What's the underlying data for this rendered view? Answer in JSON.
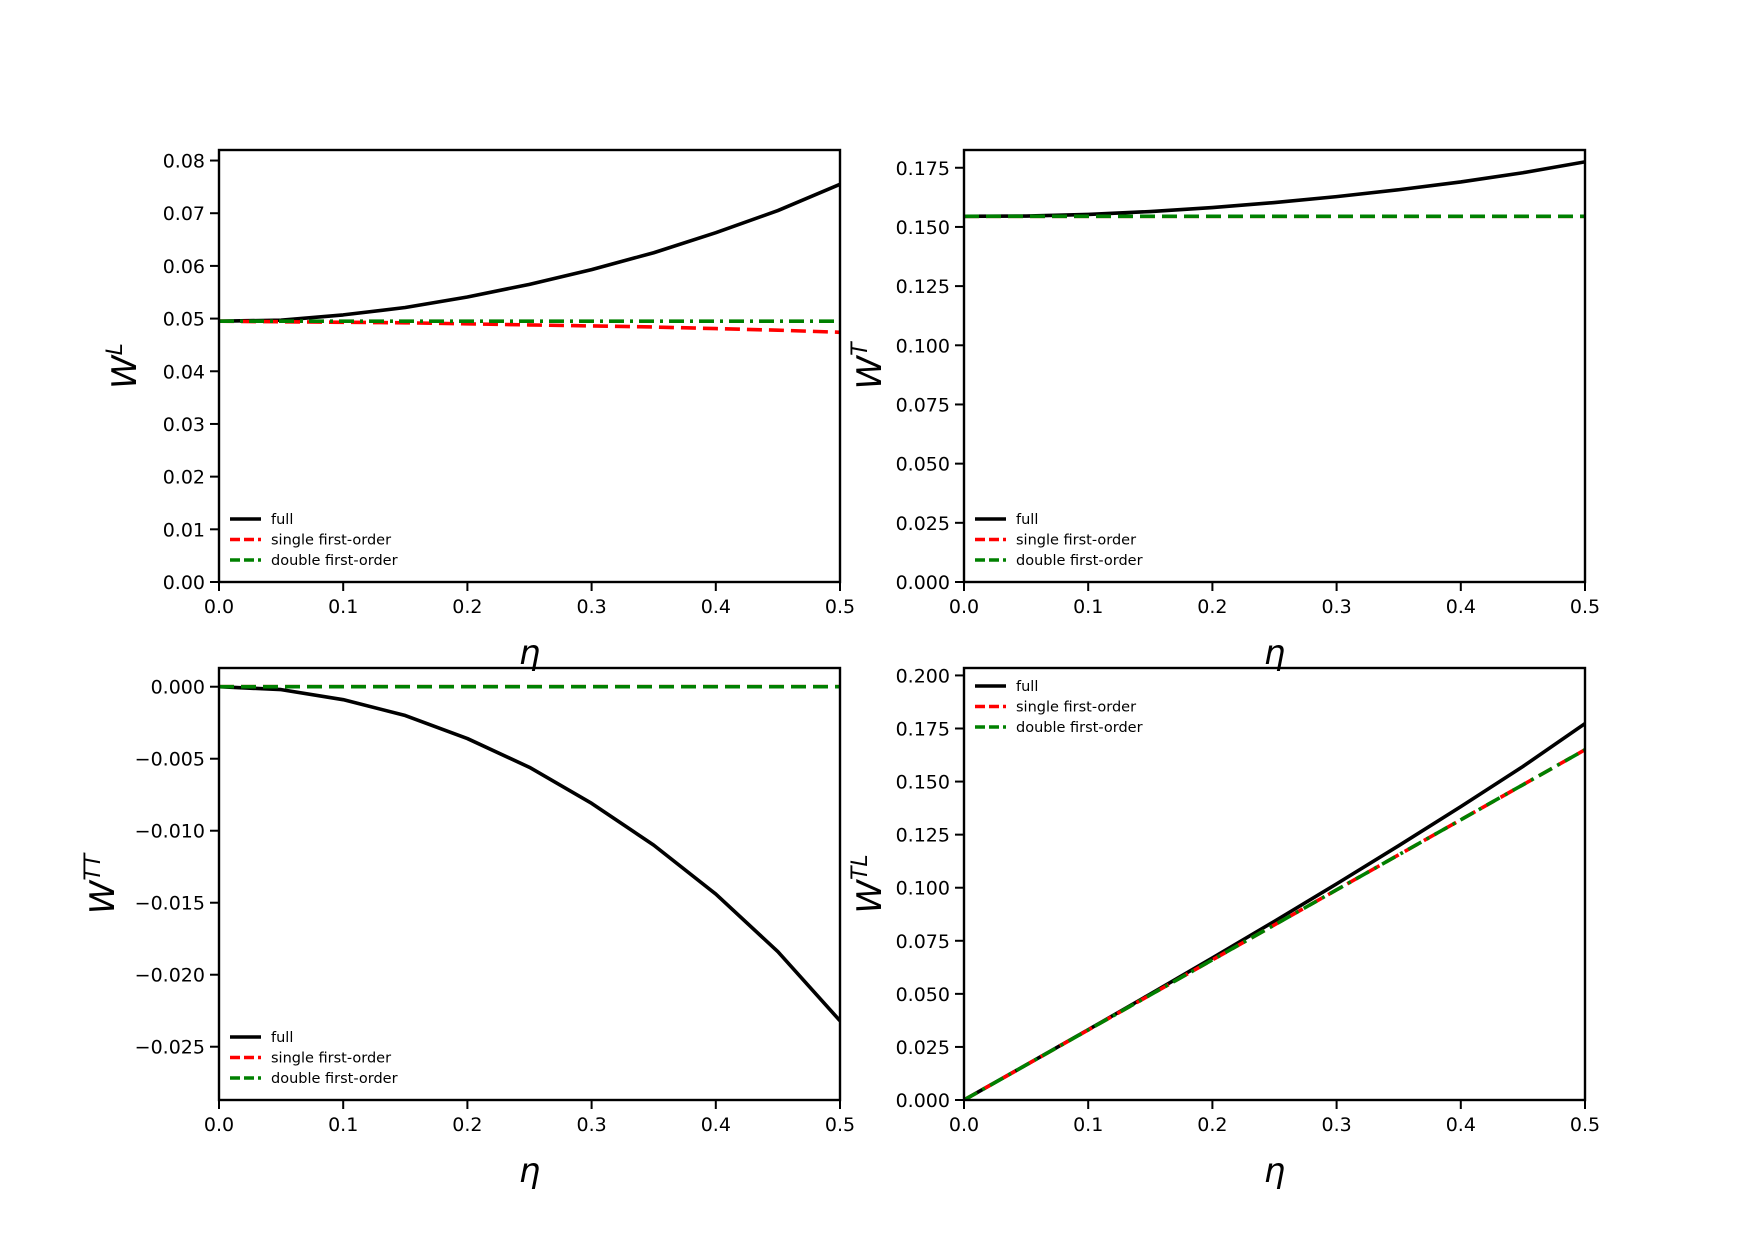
{
  "chart_data": [
    {
      "type": "line",
      "xlabel": "η",
      "ylabel_base": "W",
      "ylabel_sup": "L",
      "xlim": [
        0.0,
        0.5
      ],
      "ylim": [
        0.0,
        0.082
      ],
      "xticks": [
        "0.0",
        "0.1",
        "0.2",
        "0.3",
        "0.4",
        "0.5"
      ],
      "yticks": [
        "0.00",
        "0.01",
        "0.02",
        "0.03",
        "0.04",
        "0.05",
        "0.06",
        "0.07",
        "0.08"
      ],
      "legend_position": "lower-left",
      "x": [
        0.0,
        0.05,
        0.1,
        0.15,
        0.2,
        0.25,
        0.3,
        0.35,
        0.4,
        0.45,
        0.5
      ],
      "series": [
        {
          "name": "full",
          "color": "#000000",
          "style": "solid",
          "values": [
            0.0495,
            0.0497,
            0.0507,
            0.0521,
            0.0541,
            0.0565,
            0.0593,
            0.0625,
            0.0663,
            0.0705,
            0.0755
          ]
        },
        {
          "name": "single first-order",
          "color": "#ff0000",
          "style": "dashed",
          "values": [
            0.0495,
            0.0494,
            0.0493,
            0.0492,
            0.049,
            0.0488,
            0.0486,
            0.0484,
            0.0481,
            0.0478,
            0.0474
          ]
        },
        {
          "name": "double first-order",
          "color": "#008000",
          "style": "dashdot",
          "values": [
            0.0495,
            0.0495,
            0.0495,
            0.0495,
            0.0495,
            0.0495,
            0.0495,
            0.0495,
            0.0495,
            0.0495,
            0.0495
          ]
        }
      ]
    },
    {
      "type": "line",
      "xlabel": "η",
      "ylabel_base": "W",
      "ylabel_sup": "T",
      "xlim": [
        0.0,
        0.5
      ],
      "ylim": [
        0.0,
        0.1825
      ],
      "xticks": [
        "0.0",
        "0.1",
        "0.2",
        "0.3",
        "0.4",
        "0.5"
      ],
      "yticks": [
        "0.000",
        "0.025",
        "0.050",
        "0.075",
        "0.100",
        "0.125",
        "0.150",
        "0.175"
      ],
      "legend_position": "lower-left",
      "x": [
        0.0,
        0.05,
        0.1,
        0.15,
        0.2,
        0.25,
        0.3,
        0.35,
        0.4,
        0.45,
        0.5
      ],
      "series": [
        {
          "name": "full",
          "color": "#000000",
          "style": "solid",
          "values": [
            0.1545,
            0.1546,
            0.1553,
            0.1565,
            0.1582,
            0.1603,
            0.1628,
            0.1657,
            0.169,
            0.1729,
            0.1775
          ]
        },
        {
          "name": "single first-order",
          "color": "#ff0000",
          "style": "dashed",
          "values": [
            0.1545,
            0.1545,
            0.1545,
            0.1545,
            0.1545,
            0.1545,
            0.1545,
            0.1545,
            0.1545,
            0.1545,
            0.1545
          ]
        },
        {
          "name": "double first-order",
          "color": "#008000",
          "style": "dashed",
          "values": [
            0.1545,
            0.1545,
            0.1545,
            0.1545,
            0.1545,
            0.1545,
            0.1545,
            0.1545,
            0.1545,
            0.1545,
            0.1545
          ]
        }
      ]
    },
    {
      "type": "line",
      "xlabel": "η",
      "ylabel_base": "W",
      "ylabel_sup": "TT",
      "xlim": [
        0.0,
        0.5
      ],
      "ylim": [
        -0.0287,
        0.0013
      ],
      "xticks": [
        "0.0",
        "0.1",
        "0.2",
        "0.3",
        "0.4",
        "0.5"
      ],
      "yticks": [
        "−0.025",
        "−0.020",
        "−0.015",
        "−0.010",
        "−0.005",
        "0.000"
      ],
      "legend_position": "lower-left",
      "x": [
        0.0,
        0.05,
        0.1,
        0.15,
        0.2,
        0.25,
        0.3,
        0.35,
        0.4,
        0.45,
        0.5
      ],
      "series": [
        {
          "name": "full",
          "color": "#000000",
          "style": "solid",
          "values": [
            0.0,
            -0.0002,
            -0.0009,
            -0.002,
            -0.0036,
            -0.0056,
            -0.0081,
            -0.011,
            -0.0144,
            -0.0184,
            -0.0232
          ]
        },
        {
          "name": "single first-order",
          "color": "#ff0000",
          "style": "dashed",
          "values": [
            0.0,
            0.0,
            0.0,
            0.0,
            0.0,
            0.0,
            0.0,
            0.0,
            0.0,
            0.0,
            0.0
          ]
        },
        {
          "name": "double first-order",
          "color": "#008000",
          "style": "dashed",
          "values": [
            0.0,
            0.0,
            0.0,
            0.0,
            0.0,
            0.0,
            0.0,
            0.0,
            0.0,
            0.0,
            0.0
          ]
        }
      ]
    },
    {
      "type": "line",
      "xlabel": "η",
      "ylabel_base": "W",
      "ylabel_sup": "TL",
      "xlim": [
        0.0,
        0.5
      ],
      "ylim": [
        0.0,
        0.2035
      ],
      "xticks": [
        "0.0",
        "0.1",
        "0.2",
        "0.3",
        "0.4",
        "0.5"
      ],
      "yticks": [
        "0.000",
        "0.025",
        "0.050",
        "0.075",
        "0.100",
        "0.125",
        "0.150",
        "0.175",
        "0.200"
      ],
      "legend_position": "upper-left",
      "x": [
        0.0,
        0.05,
        0.1,
        0.15,
        0.2,
        0.25,
        0.3,
        0.35,
        0.4,
        0.45,
        0.5
      ],
      "series": [
        {
          "name": "full",
          "color": "#000000",
          "style": "solid",
          "values": [
            0.0,
            0.0165,
            0.0331,
            0.0499,
            0.0669,
            0.0842,
            0.1018,
            0.1198,
            0.1382,
            0.1571,
            0.1773
          ]
        },
        {
          "name": "single first-order",
          "color": "#ff0000",
          "style": "dashed",
          "values": [
            0.0,
            0.0165,
            0.033,
            0.0495,
            0.066,
            0.0825,
            0.099,
            0.1155,
            0.132,
            0.1485,
            0.165
          ]
        },
        {
          "name": "double first-order",
          "color": "#008000",
          "style": "dashdot",
          "values": [
            0.0,
            0.0165,
            0.033,
            0.0495,
            0.066,
            0.0825,
            0.099,
            0.1155,
            0.132,
            0.1485,
            0.165
          ]
        }
      ]
    }
  ]
}
